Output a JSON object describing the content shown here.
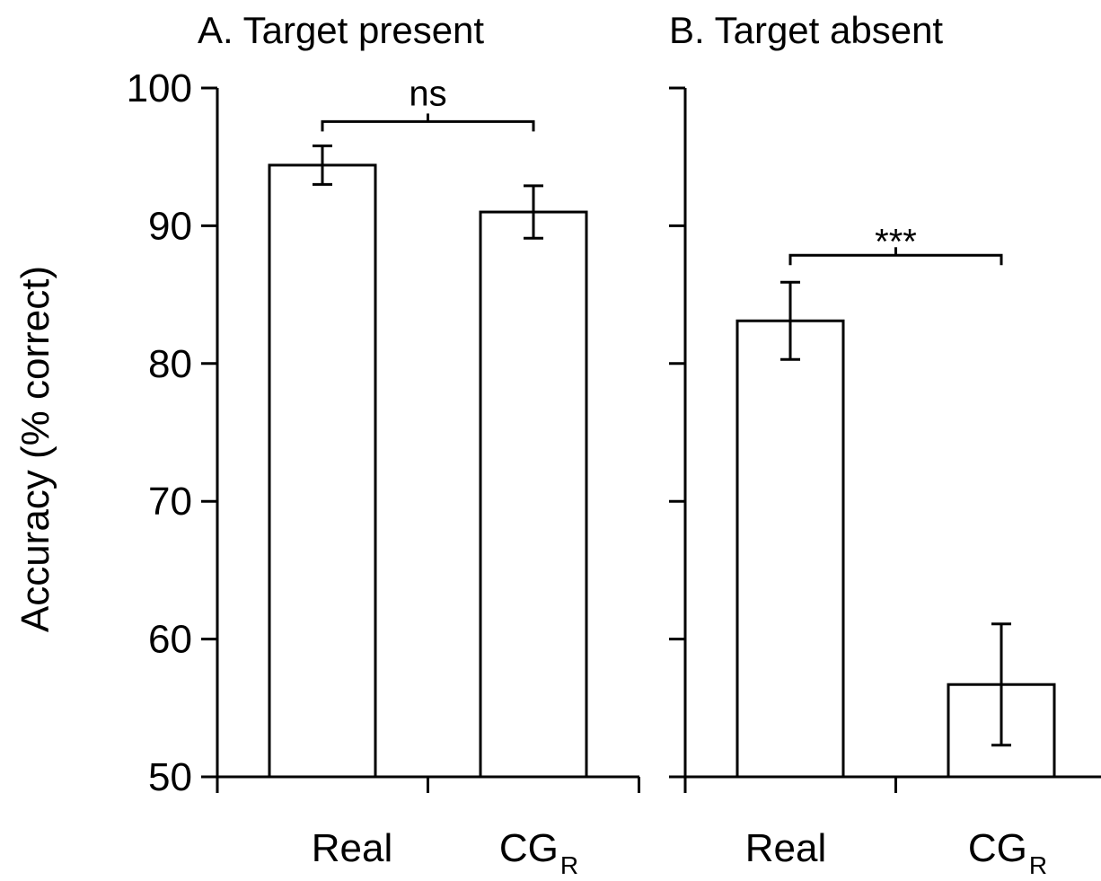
{
  "chart_data": {
    "type": "bar",
    "ylabel": "Accuracy (% correct)",
    "ylim": [
      50,
      100
    ],
    "yticks": [
      50,
      60,
      70,
      80,
      90,
      100
    ],
    "panels": [
      {
        "title": "A. Target present",
        "categories": [
          {
            "main": "Real",
            "sub": ""
          },
          {
            "main": "CG",
            "sub": "R"
          }
        ],
        "values": [
          94.4,
          91.0
        ],
        "errors": [
          1.4,
          1.9
        ],
        "significance": {
          "label": "ns",
          "between": [
            0,
            1
          ]
        }
      },
      {
        "title": "B. Target absent",
        "categories": [
          {
            "main": "Real",
            "sub": ""
          },
          {
            "main": "CG",
            "sub": "R"
          }
        ],
        "values": [
          83.1,
          56.7
        ],
        "errors": [
          2.8,
          4.4
        ],
        "significance": {
          "label": "***",
          "between": [
            0,
            1
          ]
        }
      }
    ]
  }
}
